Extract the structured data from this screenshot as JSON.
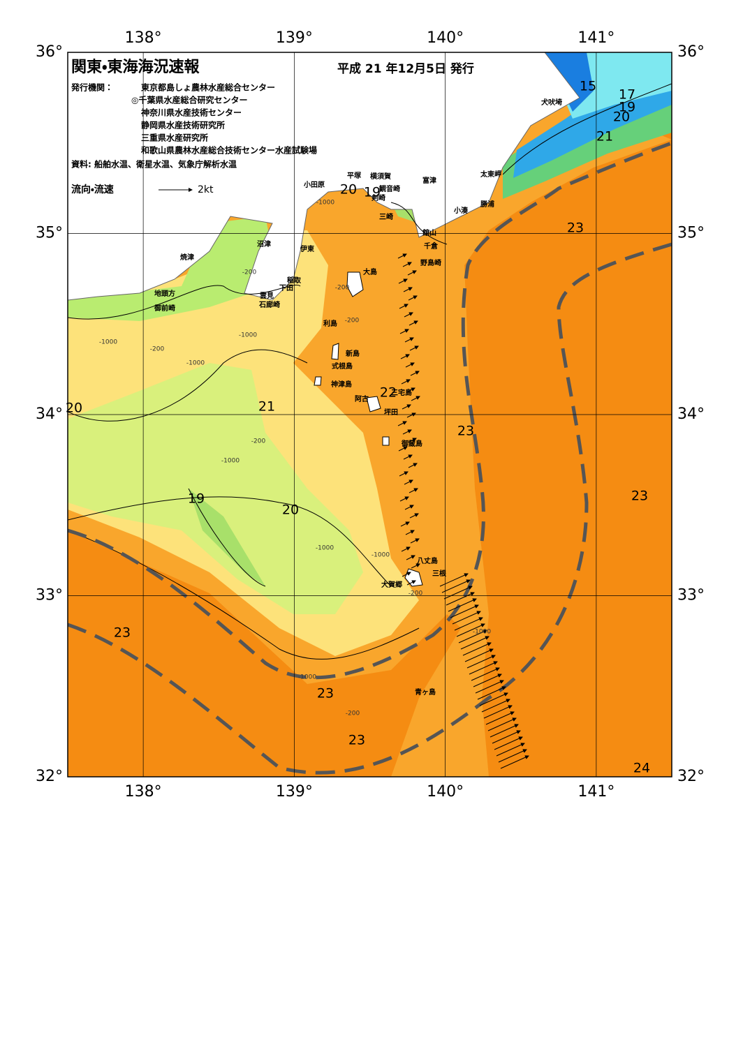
{
  "header": {
    "title": "関東・東海海況速報",
    "date": "平成 21 年12月5日 発行",
    "issuer_label": "発行機関：",
    "issuers": [
      "東京都島しょ農林水産総合センター",
      "◎千葉県水産総合研究センター",
      "神奈川県水産技術センター",
      "静岡県水産技術研究所",
      "三重県水産研究所",
      "和歌山県農林水産総合技術センター水産試験場"
    ],
    "sources": "資料: 船舶水温、衛星水温、気象庁解析水温",
    "current_legend": "流向・流速",
    "current_scale": "2kt"
  },
  "map": {
    "lon_ticks": [
      {
        "value": 138,
        "label": "138°"
      },
      {
        "value": 139,
        "label": "139°"
      },
      {
        "value": 140,
        "label": "140°"
      },
      {
        "value": 141,
        "label": "141°"
      }
    ],
    "lat_ticks": [
      {
        "value": 36,
        "label": "36°"
      },
      {
        "value": 35,
        "label": "35°"
      },
      {
        "value": 34,
        "label": "34°"
      },
      {
        "value": 33,
        "label": "33°"
      },
      {
        "value": 32,
        "label": "32°"
      }
    ],
    "lonlim": [
      137.5,
      141.5
    ],
    "latlim": [
      32,
      36
    ],
    "isotherm_labels": [
      "15",
      "17",
      "19",
      "20",
      "21",
      "20",
      "19",
      "22",
      "21",
      "20",
      "19",
      "20",
      "23",
      "23",
      "23",
      "23",
      "23",
      "23",
      "24"
    ],
    "depth_labels": [
      "-200",
      "-1000",
      "-200",
      "-1000",
      "-1000",
      "-200",
      "-1000",
      "-200",
      "-1000",
      "-1000",
      "-200",
      "-1000",
      "-200",
      "-1000",
      "-1000",
      "-200"
    ],
    "place_names": [
      "小田原",
      "平塚",
      "横須賀",
      "観音崎",
      "剣崎",
      "三崎",
      "富津",
      "太東岬",
      "勝浦",
      "小湊",
      "館山",
      "千倉",
      "野島崎",
      "犬吠埼",
      "沼津",
      "伊東",
      "焼津",
      "稲取",
      "下田",
      "雲見",
      "石廊崎",
      "地頭方",
      "御前崎",
      "大島",
      "利島",
      "新島",
      "式根島",
      "神津島",
      "三宅島",
      "阿古",
      "坪田",
      "御蔵島",
      "八丈島",
      "三根",
      "大賀郷",
      "青ヶ島"
    ]
  }
}
